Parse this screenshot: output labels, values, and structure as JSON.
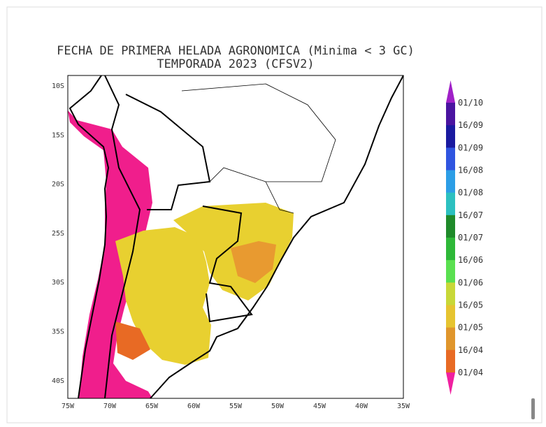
{
  "title": [
    "FECHA DE PRIMERA HELADA AGRONOMICA (Minima < 3 GC)",
    "TEMPORADA 2023 (CFSV2)"
  ],
  "map": {
    "lat_labels": [
      "10S",
      "15S",
      "20S",
      "25S",
      "30S",
      "35S",
      "40S"
    ],
    "lon_labels": [
      "75W",
      "70W",
      "65W",
      "60W",
      "55W",
      "50W",
      "45W",
      "40W",
      "35W"
    ]
  },
  "legend": {
    "labels": [
      "01/10",
      "16/09",
      "01/09",
      "16/08",
      "01/08",
      "16/07",
      "01/07",
      "16/06",
      "01/06",
      "16/05",
      "01/05",
      "16/04",
      "01/04"
    ],
    "colors": [
      "#a020c8",
      "#4a14a0",
      "#1a1aa0",
      "#2f55e0",
      "#2c9ee6",
      "#2cc0c0",
      "#1f8a2a",
      "#2eb838",
      "#5ae050",
      "#c8d838",
      "#e6c430",
      "#e0962c",
      "#e86a24",
      "#e83038",
      "#f020a0"
    ]
  }
}
